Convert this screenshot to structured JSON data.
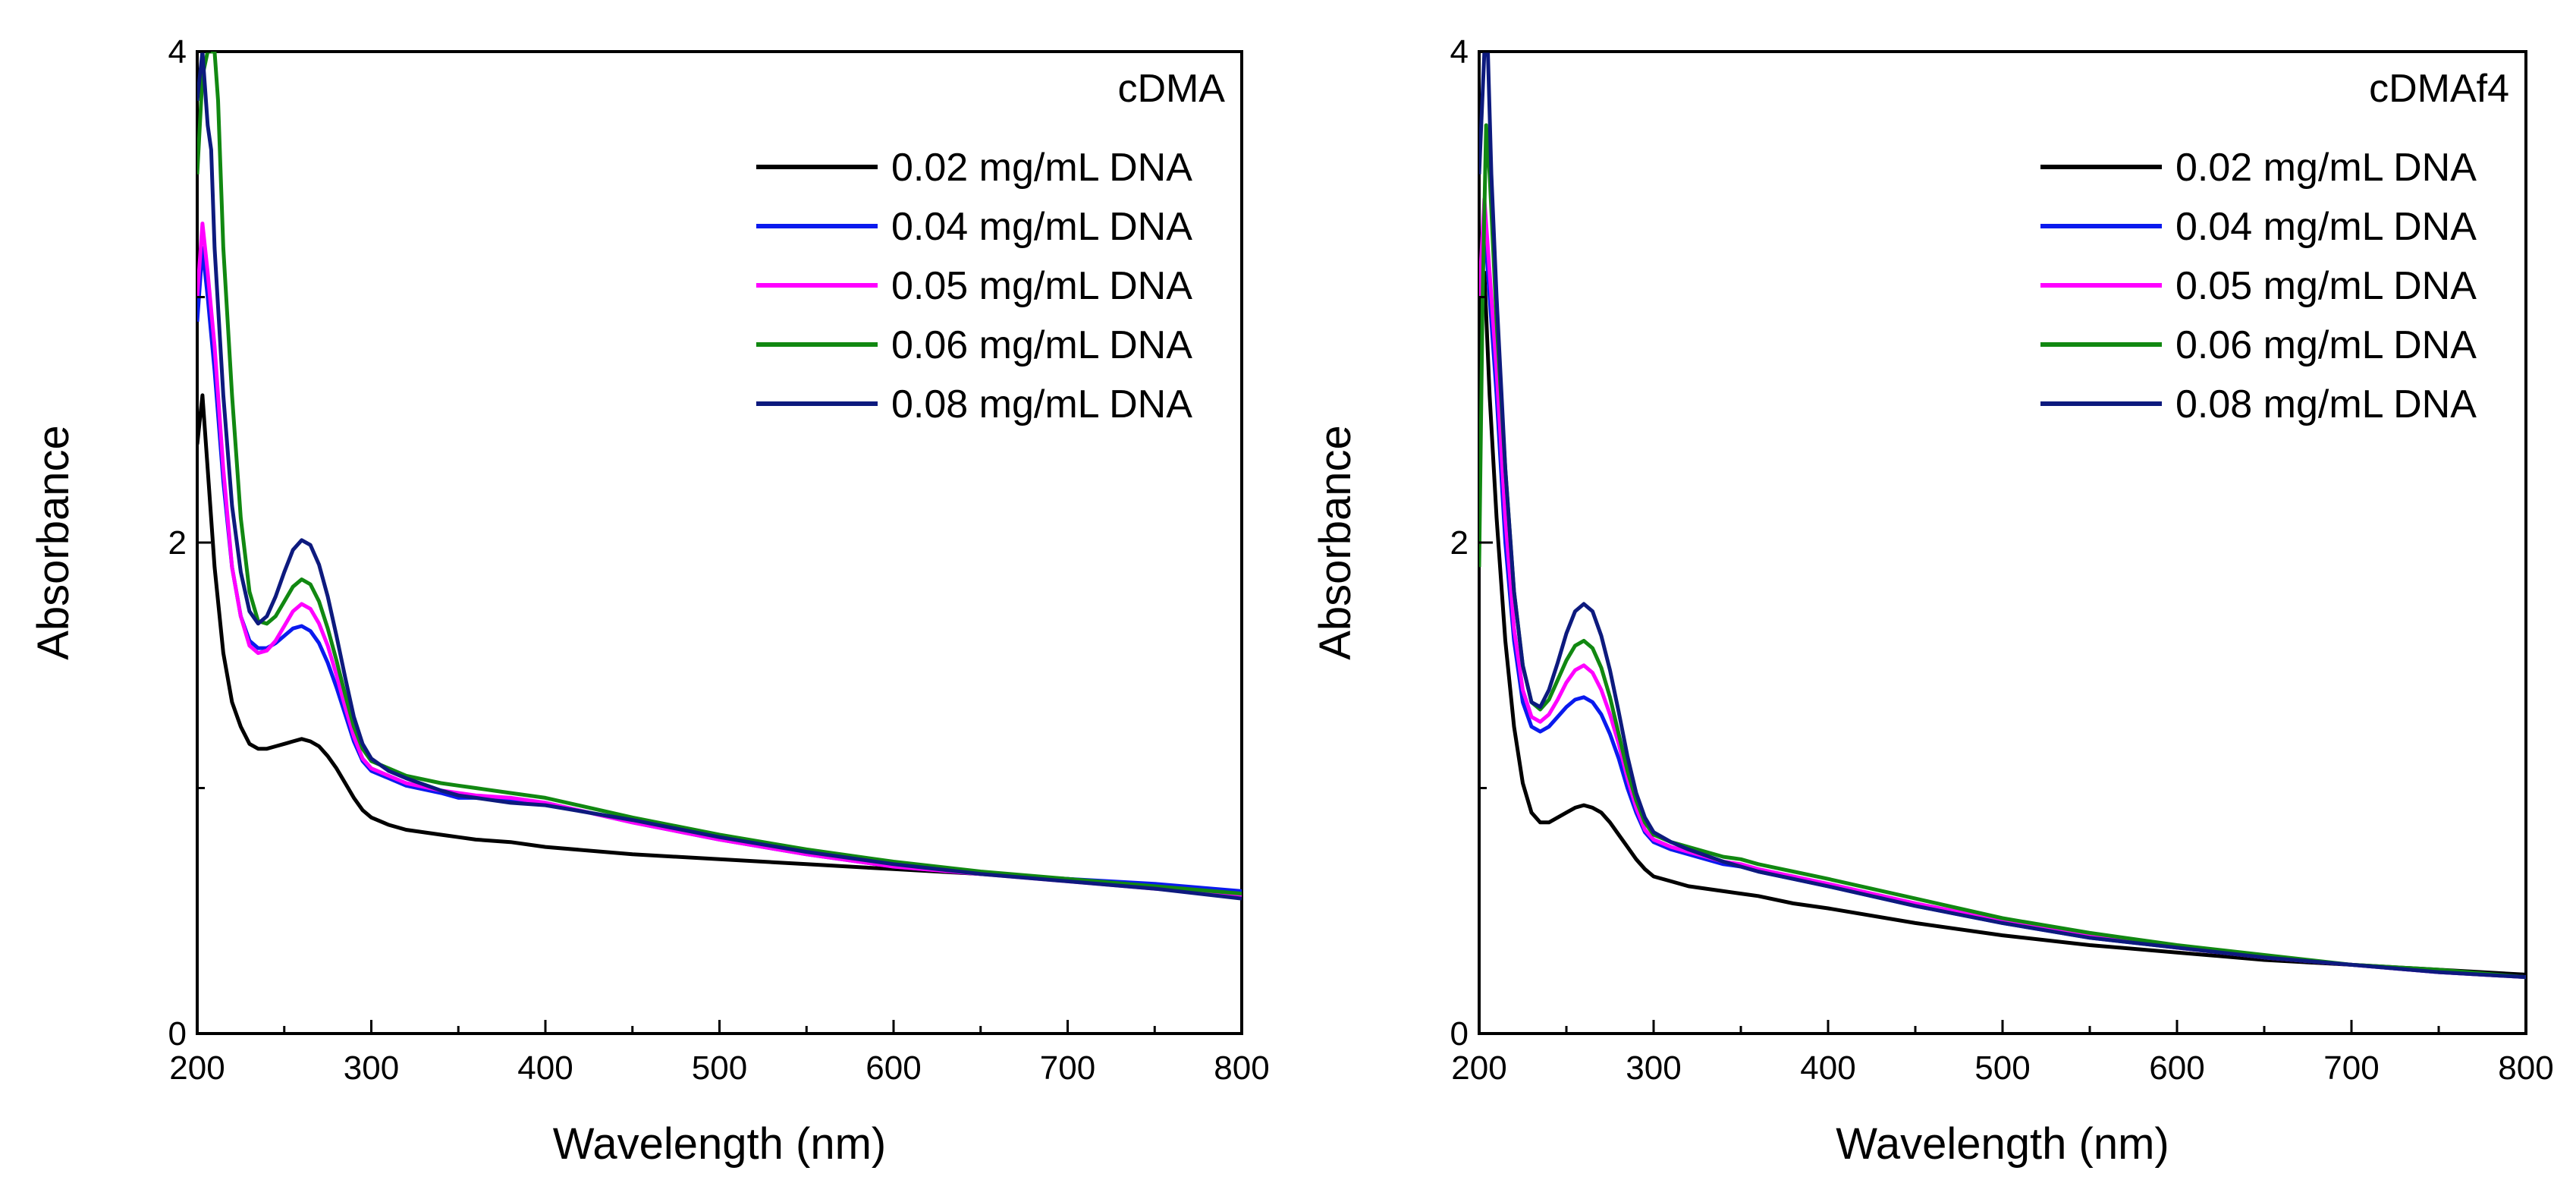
{
  "chart_data": [
    {
      "type": "line",
      "title": "cDMA",
      "xlabel": "Wavelength (nm)",
      "ylabel": "Absorbance",
      "xlim": [
        200,
        800
      ],
      "ylim": [
        0,
        4
      ],
      "xticks": [
        200,
        300,
        400,
        500,
        600,
        700,
        800
      ],
      "yticks": [
        0,
        2,
        4
      ],
      "grid": false,
      "legend_position": "top-right",
      "series": [
        {
          "name": "0.02 mg/mL DNA",
          "color": "#000000",
          "x": [
            200,
            203,
            206,
            210,
            215,
            220,
            225,
            230,
            235,
            240,
            245,
            250,
            255,
            260,
            265,
            270,
            275,
            280,
            285,
            290,
            295,
            300,
            310,
            320,
            340,
            350,
            360,
            380,
            400,
            450,
            500,
            550,
            600,
            650,
            700,
            750,
            800
          ],
          "y": [
            2.4,
            2.6,
            2.3,
            1.9,
            1.55,
            1.35,
            1.25,
            1.18,
            1.16,
            1.16,
            1.17,
            1.18,
            1.19,
            1.2,
            1.19,
            1.17,
            1.13,
            1.08,
            1.02,
            0.96,
            0.91,
            0.88,
            0.85,
            0.83,
            0.81,
            0.8,
            0.79,
            0.78,
            0.76,
            0.73,
            0.71,
            0.69,
            0.67,
            0.65,
            0.63,
            0.6,
            0.57
          ]
        },
        {
          "name": "0.04 mg/mL DNA",
          "color": "#0a1aee",
          "x": [
            200,
            203,
            206,
            210,
            215,
            220,
            225,
            230,
            235,
            240,
            245,
            250,
            255,
            260,
            265,
            270,
            275,
            280,
            285,
            290,
            295,
            300,
            310,
            320,
            340,
            350,
            360,
            380,
            400,
            450,
            500,
            550,
            600,
            650,
            700,
            750,
            800
          ],
          "y": [
            2.9,
            3.2,
            3.0,
            2.7,
            2.25,
            1.9,
            1.7,
            1.6,
            1.57,
            1.57,
            1.59,
            1.62,
            1.65,
            1.66,
            1.64,
            1.59,
            1.51,
            1.41,
            1.3,
            1.19,
            1.11,
            1.07,
            1.04,
            1.01,
            0.98,
            0.96,
            0.96,
            0.95,
            0.94,
            0.86,
            0.79,
            0.73,
            0.68,
            0.65,
            0.63,
            0.61,
            0.58
          ]
        },
        {
          "name": "0.05 mg/mL DNA",
          "color": "#ff00ff",
          "x": [
            200,
            203,
            206,
            210,
            215,
            220,
            225,
            230,
            235,
            240,
            245,
            250,
            255,
            260,
            265,
            270,
            275,
            280,
            285,
            290,
            295,
            300,
            310,
            320,
            340,
            350,
            360,
            380,
            400,
            450,
            500,
            550,
            600,
            650,
            700,
            750,
            800
          ],
          "y": [
            3.0,
            3.3,
            3.1,
            2.8,
            2.3,
            1.9,
            1.7,
            1.58,
            1.55,
            1.56,
            1.6,
            1.66,
            1.72,
            1.75,
            1.73,
            1.67,
            1.58,
            1.46,
            1.33,
            1.21,
            1.12,
            1.08,
            1.05,
            1.02,
            0.99,
            0.98,
            0.97,
            0.96,
            0.94,
            0.86,
            0.79,
            0.73,
            0.68,
            0.65,
            0.62,
            0.59,
            0.56
          ]
        },
        {
          "name": "0.06 mg/mL DNA",
          "color": "#118811",
          "x": [
            200,
            203,
            206,
            210,
            212,
            215,
            220,
            225,
            230,
            235,
            240,
            245,
            250,
            255,
            260,
            265,
            270,
            275,
            280,
            285,
            290,
            295,
            300,
            310,
            320,
            340,
            350,
            360,
            380,
            400,
            450,
            500,
            550,
            600,
            650,
            700,
            750,
            800
          ],
          "y": [
            3.5,
            3.9,
            4.0,
            4.0,
            3.8,
            3.2,
            2.6,
            2.1,
            1.8,
            1.68,
            1.67,
            1.7,
            1.76,
            1.82,
            1.85,
            1.83,
            1.76,
            1.65,
            1.52,
            1.38,
            1.25,
            1.16,
            1.11,
            1.08,
            1.05,
            1.02,
            1.01,
            1.0,
            0.98,
            0.96,
            0.88,
            0.81,
            0.75,
            0.7,
            0.66,
            0.63,
            0.6,
            0.57
          ]
        },
        {
          "name": "0.08 mg/mL DNA",
          "color": "#0d1a7e",
          "x": [
            200,
            203,
            206,
            208,
            210,
            215,
            220,
            225,
            230,
            235,
            240,
            245,
            250,
            255,
            260,
            265,
            270,
            275,
            280,
            285,
            290,
            295,
            300,
            310,
            320,
            340,
            350,
            360,
            380,
            400,
            450,
            500,
            550,
            600,
            650,
            700,
            750,
            800
          ],
          "y": [
            3.8,
            4.0,
            3.7,
            3.6,
            3.2,
            2.6,
            2.15,
            1.88,
            1.72,
            1.67,
            1.7,
            1.78,
            1.88,
            1.97,
            2.01,
            1.99,
            1.91,
            1.78,
            1.62,
            1.45,
            1.29,
            1.18,
            1.12,
            1.07,
            1.04,
            0.99,
            0.97,
            0.96,
            0.94,
            0.93,
            0.87,
            0.8,
            0.74,
            0.69,
            0.65,
            0.62,
            0.59,
            0.55
          ]
        }
      ]
    },
    {
      "type": "line",
      "title": "cDMAf4",
      "xlabel": "Wavelength (nm)",
      "ylabel": "Absorbance",
      "xlim": [
        200,
        800
      ],
      "ylim": [
        0,
        4
      ],
      "xticks": [
        200,
        300,
        400,
        500,
        600,
        700,
        800
      ],
      "yticks": [
        0,
        2,
        4
      ],
      "grid": false,
      "legend_position": "top-right",
      "series": [
        {
          "name": "0.02 mg/mL DNA",
          "color": "#000000",
          "x": [
            200,
            203,
            206,
            210,
            215,
            220,
            225,
            230,
            235,
            240,
            245,
            250,
            255,
            260,
            265,
            270,
            275,
            280,
            285,
            290,
            295,
            300,
            310,
            320,
            340,
            350,
            360,
            380,
            400,
            450,
            500,
            550,
            600,
            650,
            700,
            750,
            800
          ],
          "y": [
            2.9,
            3.1,
            2.6,
            2.1,
            1.6,
            1.25,
            1.02,
            0.9,
            0.86,
            0.86,
            0.88,
            0.9,
            0.92,
            0.93,
            0.92,
            0.9,
            0.86,
            0.81,
            0.76,
            0.71,
            0.67,
            0.64,
            0.62,
            0.6,
            0.58,
            0.57,
            0.56,
            0.53,
            0.51,
            0.45,
            0.4,
            0.36,
            0.33,
            0.3,
            0.28,
            0.26,
            0.24
          ]
        },
        {
          "name": "0.04 mg/mL DNA",
          "color": "#0a1aee",
          "x": [
            200,
            203,
            206,
            210,
            215,
            220,
            225,
            230,
            235,
            240,
            245,
            250,
            255,
            260,
            265,
            270,
            275,
            280,
            285,
            290,
            295,
            300,
            310,
            320,
            340,
            350,
            360,
            380,
            400,
            450,
            500,
            550,
            600,
            650,
            700,
            750,
            800
          ],
          "y": [
            3.0,
            3.3,
            3.0,
            2.6,
            2.0,
            1.6,
            1.35,
            1.25,
            1.23,
            1.25,
            1.29,
            1.33,
            1.36,
            1.37,
            1.35,
            1.3,
            1.22,
            1.12,
            1.0,
            0.9,
            0.82,
            0.78,
            0.75,
            0.73,
            0.69,
            0.68,
            0.66,
            0.63,
            0.6,
            0.52,
            0.45,
            0.39,
            0.35,
            0.31,
            0.28,
            0.25,
            0.23
          ]
        },
        {
          "name": "0.05 mg/mL DNA",
          "color": "#ff00ff",
          "x": [
            200,
            203,
            206,
            210,
            215,
            220,
            225,
            230,
            235,
            240,
            245,
            250,
            255,
            260,
            265,
            270,
            275,
            280,
            285,
            290,
            295,
            300,
            310,
            320,
            340,
            350,
            360,
            380,
            400,
            450,
            500,
            550,
            600,
            650,
            700,
            750,
            800
          ],
          "y": [
            3.0,
            3.4,
            3.1,
            2.7,
            2.1,
            1.65,
            1.4,
            1.29,
            1.27,
            1.3,
            1.36,
            1.43,
            1.48,
            1.5,
            1.47,
            1.4,
            1.3,
            1.18,
            1.04,
            0.92,
            0.83,
            0.79,
            0.76,
            0.74,
            0.7,
            0.69,
            0.67,
            0.64,
            0.61,
            0.53,
            0.46,
            0.4,
            0.35,
            0.31,
            0.28,
            0.25,
            0.23
          ]
        },
        {
          "name": "0.06 mg/mL DNA",
          "color": "#118811",
          "x": [
            200,
            202,
            204,
            206,
            208,
            210,
            215,
            220,
            225,
            230,
            235,
            240,
            245,
            250,
            255,
            260,
            265,
            270,
            275,
            280,
            285,
            290,
            295,
            300,
            310,
            320,
            340,
            350,
            360,
            380,
            400,
            450,
            500,
            550,
            600,
            650,
            700,
            750,
            800
          ],
          "y": [
            1.9,
            3.0,
            3.7,
            3.5,
            3.2,
            2.9,
            2.3,
            1.8,
            1.5,
            1.35,
            1.32,
            1.36,
            1.44,
            1.52,
            1.58,
            1.6,
            1.57,
            1.49,
            1.37,
            1.22,
            1.07,
            0.95,
            0.86,
            0.81,
            0.78,
            0.76,
            0.72,
            0.71,
            0.69,
            0.66,
            0.63,
            0.55,
            0.47,
            0.41,
            0.36,
            0.32,
            0.28,
            0.26,
            0.23
          ]
        },
        {
          "name": "0.08 mg/mL DNA",
          "color": "#0d1a7e",
          "x": [
            200,
            203,
            205,
            207,
            210,
            215,
            220,
            225,
            230,
            235,
            240,
            245,
            250,
            255,
            260,
            265,
            270,
            275,
            280,
            285,
            290,
            295,
            300,
            310,
            320,
            340,
            350,
            360,
            380,
            400,
            450,
            500,
            550,
            600,
            650,
            700,
            750,
            800
          ],
          "y": [
            3.5,
            4.0,
            4.0,
            3.5,
            3.0,
            2.3,
            1.8,
            1.5,
            1.35,
            1.33,
            1.4,
            1.51,
            1.63,
            1.72,
            1.75,
            1.72,
            1.62,
            1.48,
            1.31,
            1.13,
            0.98,
            0.88,
            0.82,
            0.78,
            0.75,
            0.7,
            0.68,
            0.66,
            0.63,
            0.6,
            0.52,
            0.45,
            0.39,
            0.35,
            0.31,
            0.28,
            0.25,
            0.23
          ]
        }
      ]
    }
  ]
}
